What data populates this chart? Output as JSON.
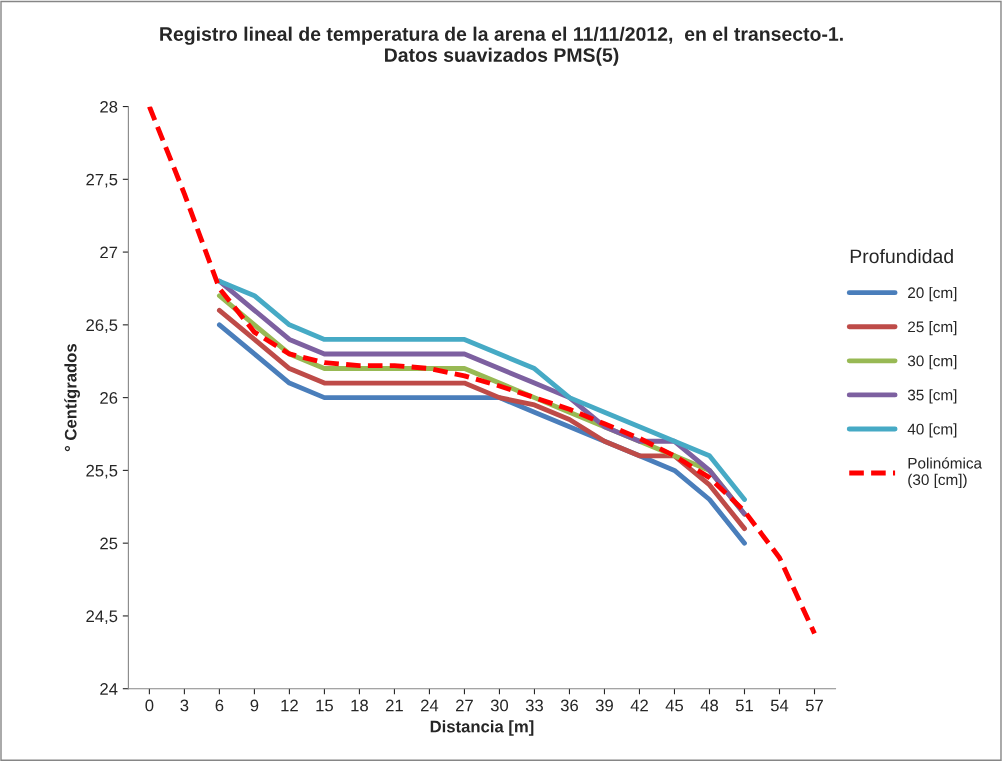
{
  "chart_data": {
    "type": "line",
    "title": "Registro lineal de temperatura de la arena el 11/11/2012,  en el transecto-1.\nDatos suavizados PMS(5)",
    "xlabel": "Distancia [m]",
    "ylabel": "° Centígrados",
    "legend_title": "Profundidad",
    "categories": [
      "0",
      "3",
      "6",
      "9",
      "12",
      "15",
      "18",
      "21",
      "24",
      "27",
      "30",
      "33",
      "36",
      "39",
      "42",
      "45",
      "48",
      "51",
      "54",
      "57"
    ],
    "series": [
      {
        "name": "20 [cm]",
        "color": "#4a7ebb",
        "values": [
          null,
          null,
          26.5,
          26.3,
          26.1,
          26.0,
          26.0,
          26.0,
          26.0,
          26.0,
          26.0,
          25.9,
          25.8,
          25.7,
          25.6,
          25.5,
          25.3,
          25.0,
          null,
          null
        ]
      },
      {
        "name": "25 [cm]",
        "color": "#be4b48",
        "values": [
          null,
          null,
          26.6,
          26.4,
          26.2,
          26.1,
          26.1,
          26.1,
          26.1,
          26.1,
          26.0,
          25.95,
          25.85,
          25.7,
          25.6,
          25.6,
          25.4,
          25.1,
          null,
          null
        ]
      },
      {
        "name": "30 [cm]",
        "color": "#98b954",
        "values": [
          null,
          null,
          26.7,
          26.5,
          26.3,
          26.2,
          26.2,
          26.2,
          26.2,
          26.2,
          26.1,
          26.0,
          25.9,
          25.8,
          25.7,
          25.6,
          25.5,
          25.2,
          null,
          null
        ]
      },
      {
        "name": "35 [cm]",
        "color": "#7d60a0",
        "values": [
          null,
          null,
          26.8,
          26.6,
          26.4,
          26.3,
          26.3,
          26.3,
          26.3,
          26.3,
          26.2,
          26.1,
          26.0,
          25.8,
          25.7,
          25.7,
          25.5,
          25.2,
          null,
          null
        ]
      },
      {
        "name": "40 [cm]",
        "color": "#46aac5",
        "values": [
          null,
          null,
          26.8,
          26.7,
          26.5,
          26.4,
          26.4,
          26.4,
          26.4,
          26.4,
          26.3,
          26.2,
          26.0,
          25.9,
          25.8,
          25.7,
          25.6,
          25.3,
          null,
          null
        ]
      },
      {
        "name": "Polinómica\n(30 [cm])",
        "color": "#ff0000",
        "line_style": "dashed",
        "values": [
          28.0,
          27.4,
          26.75,
          26.45,
          26.3,
          26.24,
          26.22,
          26.22,
          26.2,
          26.15,
          26.08,
          26.0,
          25.92,
          25.82,
          25.72,
          25.6,
          25.45,
          25.22,
          24.9,
          24.38
        ]
      }
    ],
    "ylim": [
      24,
      28
    ],
    "yticks": [
      24,
      {
        "value": 24.5,
        "label": "24,5"
      },
      25,
      {
        "value": 25.5,
        "label": "25,5"
      },
      26,
      {
        "value": 26.5,
        "label": "26,5"
      },
      27,
      {
        "value": 27.5,
        "label": "27,5"
      },
      28
    ],
    "grid": false,
    "legend": "right"
  }
}
